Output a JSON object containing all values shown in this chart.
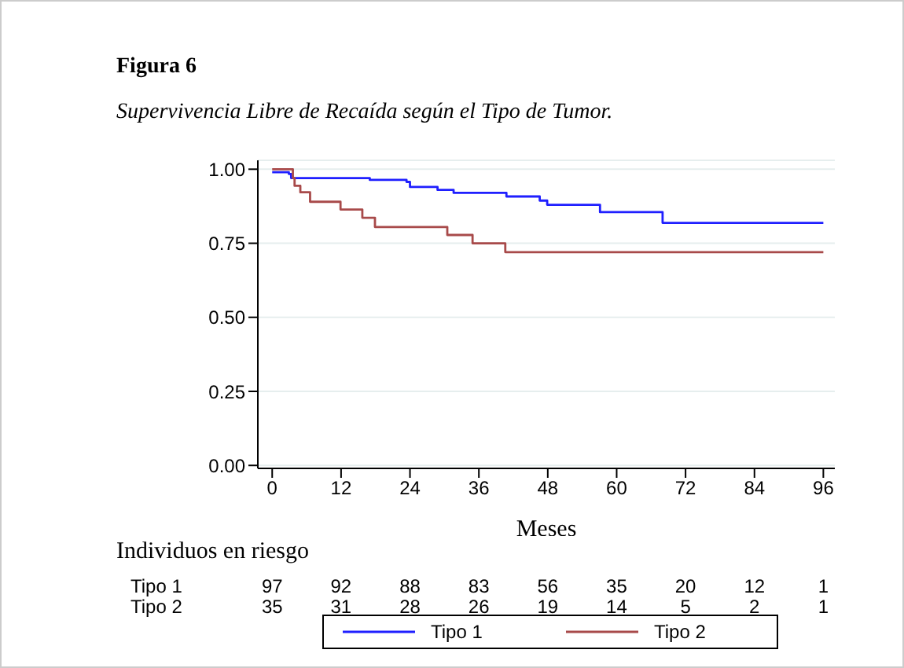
{
  "chart_data": {
    "type": "step",
    "title": "Figura 6",
    "subtitle": "Supervivencia Libre de Recaída según el Tipo de Tumor.",
    "xlabel": "Meses",
    "xlim": [
      -2.5,
      98
    ],
    "xticks": [
      0,
      12,
      24,
      36,
      48,
      60,
      72,
      84,
      96
    ],
    "ylim": [
      -0.01,
      1.03
    ],
    "yticks": [
      {
        "value": 0,
        "label": "0.00"
      },
      {
        "value": 0.25,
        "label": "0.25"
      },
      {
        "value": 0.5,
        "label": "0.50"
      },
      {
        "value": 0.75,
        "label": "0.75"
      },
      {
        "value": 1,
        "label": "1.00"
      }
    ],
    "grid": "y",
    "legend": "bottom",
    "marker": "none",
    "series": [
      {
        "name": "Tipo 1",
        "color": "#1f1fff",
        "x": [
          0,
          2.9,
          3.3,
          17,
          23.4,
          24,
          28.8,
          31.6,
          40.8,
          46.6,
          47.9,
          57.1,
          68,
          96
        ],
        "values": [
          0.99,
          0.984,
          0.97,
          0.964,
          0.957,
          0.94,
          0.93,
          0.92,
          0.908,
          0.894,
          0.88,
          0.855,
          0.819,
          0.819
        ]
      },
      {
        "name": "Tipo 2",
        "color": "#a84a4a",
        "x": [
          0,
          3.6,
          3.9,
          4.9,
          6.6,
          11.9,
          15.7,
          17.9,
          30.5,
          34.9,
          40.6,
          96
        ],
        "values": [
          1,
          0.97,
          0.944,
          0.922,
          0.89,
          0.864,
          0.836,
          0.805,
          0.778,
          0.75,
          0.72,
          0.72
        ]
      }
    ],
    "annotations": [
      "Individuos en riesgo",
      "Tipo 1",
      "97",
      "92",
      "88",
      "83",
      "56",
      "35",
      "20",
      "12",
      "1",
      "Tipo 2",
      "35",
      "31",
      "28",
      "26",
      "19",
      "14",
      "5",
      "2",
      "1"
    ]
  }
}
